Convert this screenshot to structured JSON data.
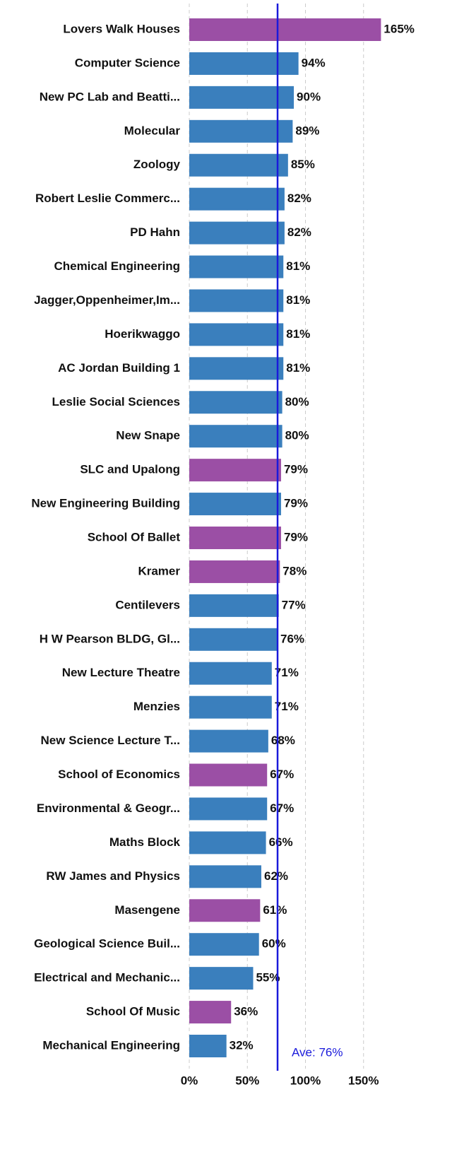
{
  "chart_data": {
    "type": "barh",
    "categories": [
      "Lovers Walk Houses",
      "Computer Science",
      "New PC Lab and Beatti...",
      "Molecular",
      "Zoology",
      "Robert Leslie Commerc...",
      "PD Hahn",
      "Chemical Engineering",
      "Jagger,Oppenheimer,Im...",
      "Hoerikwaggo",
      "AC Jordan Building 1",
      "Leslie Social Sciences",
      "New Snape",
      "SLC and Upalong",
      "New Engineering Building",
      "School Of Ballet",
      "Kramer",
      "Centilevers",
      "H W Pearson BLDG, Gl...",
      "New Lecture Theatre",
      "Menzies",
      "New Science Lecture T...",
      "School of Economics",
      "Environmental & Geogr...",
      "Maths Block",
      "RW James and Physics",
      "Masengene",
      "Geological Science Buil...",
      "Electrical and Mechanic...",
      "School Of Music",
      "Mechanical Engineering"
    ],
    "values": [
      165,
      94,
      90,
      89,
      85,
      82,
      82,
      81,
      81,
      81,
      81,
      80,
      80,
      79,
      79,
      79,
      78,
      77,
      76,
      71,
      71,
      68,
      67,
      67,
      66,
      62,
      61,
      60,
      55,
      36,
      32
    ],
    "value_labels": [
      "165%",
      "94%",
      "90%",
      "89%",
      "85%",
      "82%",
      "82%",
      "81%",
      "81%",
      "81%",
      "81%",
      "80%",
      "80%",
      "79%",
      "79%",
      "79%",
      "78%",
      "77%",
      "76%",
      "71%",
      "71%",
      "68%",
      "67%",
      "67%",
      "66%",
      "62%",
      "61%",
      "60%",
      "55%",
      "36%",
      "32%"
    ],
    "colors": [
      "#9b4fa5",
      "#3a7fbd",
      "#3a7fbd",
      "#3a7fbd",
      "#3a7fbd",
      "#3a7fbd",
      "#3a7fbd",
      "#3a7fbd",
      "#3a7fbd",
      "#3a7fbd",
      "#3a7fbd",
      "#3a7fbd",
      "#3a7fbd",
      "#9b4fa5",
      "#3a7fbd",
      "#9b4fa5",
      "#9b4fa5",
      "#3a7fbd",
      "#3a7fbd",
      "#3a7fbd",
      "#3a7fbd",
      "#3a7fbd",
      "#9b4fa5",
      "#3a7fbd",
      "#3a7fbd",
      "#3a7fbd",
      "#9b4fa5",
      "#3a7fbd",
      "#3a7fbd",
      "#9b4fa5",
      "#3a7fbd"
    ],
    "xlim": [
      0,
      190
    ],
    "xticks": [
      {
        "value": 0,
        "label": "0%"
      },
      {
        "value": 50,
        "label": "50%"
      },
      {
        "value": 100,
        "label": "100%"
      },
      {
        "value": 150,
        "label": "150%"
      }
    ],
    "grid": true,
    "average": {
      "value": 76,
      "label": "Ave: 76%",
      "color": "#1a1adb"
    }
  }
}
